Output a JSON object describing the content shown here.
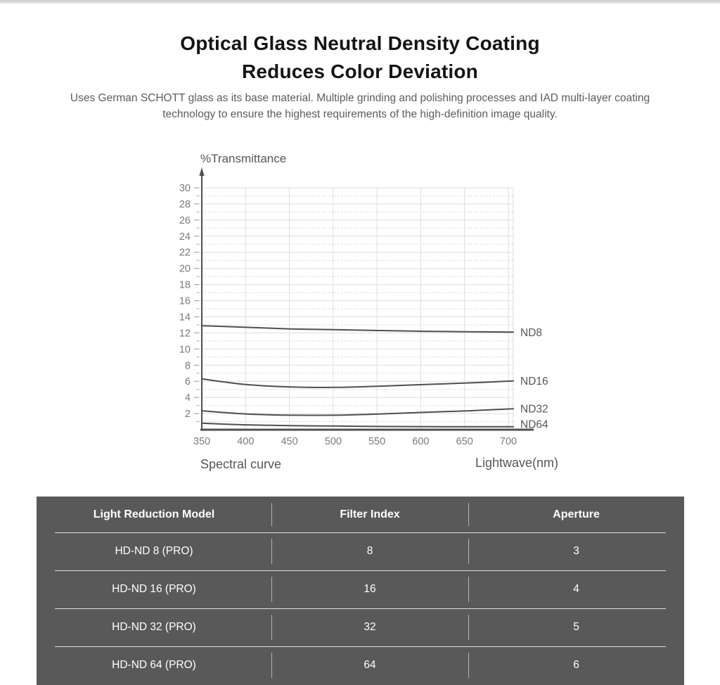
{
  "header": {
    "title_line1": "Optical Glass Neutral Density Coating",
    "title_line2": "Reduces Color Deviation",
    "subtitle_line1": "Uses German SCHOTT glass as its base material. Multiple grinding and polishing processes and IAD multi-layer coating",
    "subtitle_line2": "technology to ensure the highest requirements of the high-definition image quality."
  },
  "chart_data": {
    "type": "line",
    "title": "%Transmittance",
    "xlabel": "Lightwave(nm)",
    "caption": "Spectral curve",
    "x": [
      350,
      400,
      450,
      500,
      550,
      600,
      650,
      700
    ],
    "series": [
      {
        "name": "ND8",
        "values": [
          12.9,
          12.7,
          12.5,
          12.4,
          12.3,
          12.2,
          12.15,
          12.1
        ]
      },
      {
        "name": "ND16",
        "values": [
          6.3,
          5.6,
          5.3,
          5.25,
          5.4,
          5.6,
          5.8,
          6.05
        ]
      },
      {
        "name": "ND32",
        "values": [
          2.35,
          1.95,
          1.8,
          1.8,
          1.95,
          2.15,
          2.35,
          2.6
        ]
      },
      {
        "name": "ND64",
        "values": [
          0.8,
          0.6,
          0.5,
          0.45,
          0.4,
          0.38,
          0.37,
          0.37
        ]
      }
    ],
    "xlim": [
      350,
      700
    ],
    "x_tick_step": 50,
    "ylim": [
      0,
      30
    ],
    "y_label_step": 2,
    "grid": true,
    "legend_position": "right-of-curves",
    "colors": {
      "curve": "#4f4f4f",
      "axis": "#4f4f4f",
      "grid_solid": "#dedede",
      "grid_dotted": "#c9c9c9",
      "tick": "#a8a8a8",
      "tick_label": "#7a7a7a",
      "text_label": "#565656"
    }
  },
  "table": {
    "background": "#595959",
    "text_color": "#ffffff",
    "columns": [
      "Light Reduction Model",
      "Filter Index",
      "Aperture"
    ],
    "rows": [
      {
        "model": "HD-ND 8 (PRO)",
        "filter_index": "8",
        "aperture": "3"
      },
      {
        "model": "HD-ND 16 (PRO)",
        "filter_index": "16",
        "aperture": "4"
      },
      {
        "model": "HD-ND 32 (PRO)",
        "filter_index": "32",
        "aperture": "5"
      },
      {
        "model": "HD-ND 64 (PRO)",
        "filter_index": "64",
        "aperture": "6"
      }
    ]
  }
}
